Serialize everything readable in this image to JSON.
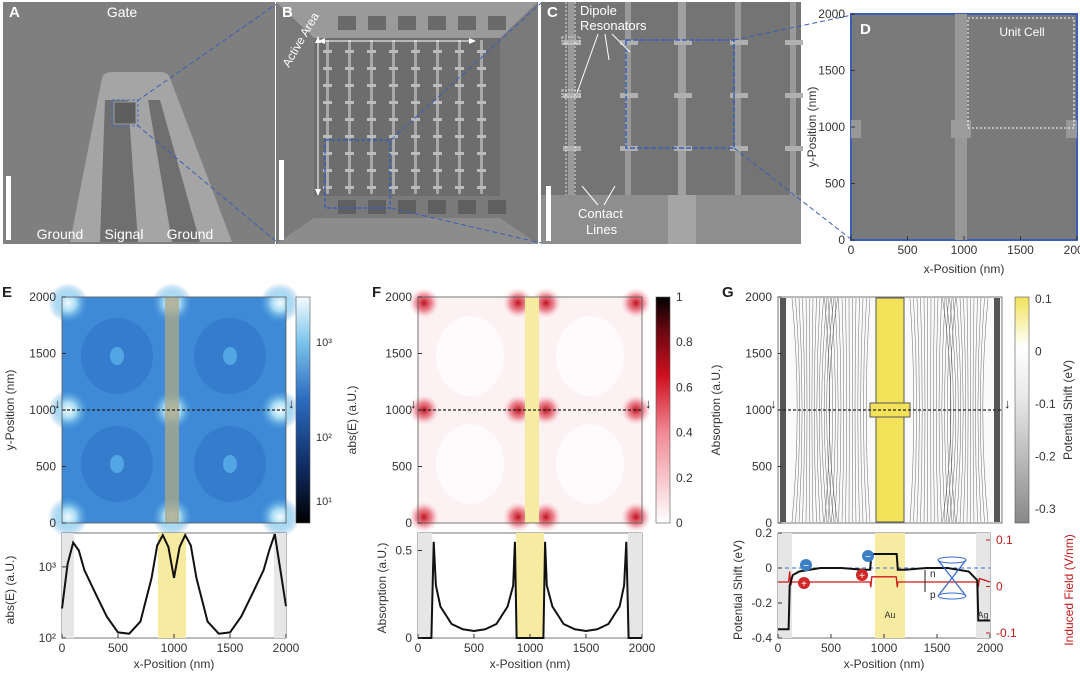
{
  "panels": {
    "A": {
      "letter": "A",
      "gate": "Gate",
      "ground_left": "Ground",
      "signal": "Signal",
      "ground_right": "Ground"
    },
    "B": {
      "letter": "B",
      "active_area": "Active Area"
    },
    "C": {
      "letter": "C",
      "dipole": "Dipole",
      "resonators": "Resonators",
      "contact": "Contact",
      "lines": "Lines"
    },
    "D": {
      "letter": "D",
      "unit_cell": "Unit Cell",
      "xlabel": "x-Position (nm)",
      "ylabel": "y-Position (nm)",
      "xticks": [
        "0",
        "500",
        "1000",
        "1500",
        "2000"
      ],
      "yticks": [
        "0",
        "500",
        "1000",
        "1500",
        "2000"
      ]
    },
    "E": {
      "letter": "E",
      "ylabel": "y-Position (nm)",
      "cbar_label": "abs(E) (a.U.)",
      "cbar_ticks": [
        "10³",
        "10²",
        "10¹"
      ],
      "bottom_ylabel": "abs(E) (a.U.)",
      "bottom_yticks": [
        "10³",
        "10²"
      ],
      "xlabel": "x-Position (nm)",
      "xticks": [
        "0",
        "500",
        "1000",
        "1500",
        "2000"
      ],
      "yticks": [
        "0",
        "500",
        "1000",
        "1500",
        "2000"
      ]
    },
    "F": {
      "letter": "F",
      "cbar_label": "Absorption (a.U.)",
      "cbar_ticks": [
        "1",
        "0.8",
        "0.6",
        "0.4",
        "0.2",
        "0"
      ],
      "bottom_ylabel": "Absorption (a.U.)",
      "bottom_yticks": [
        "0.5",
        "0"
      ],
      "xlabel": "x-Position (nm)",
      "xticks": [
        "0",
        "500",
        "1000",
        "1500",
        "2000"
      ],
      "yticks": [
        "0",
        "500",
        "1000",
        "1500",
        "2000"
      ]
    },
    "G": {
      "letter": "G",
      "cbar_label": "Potential Shift (eV)",
      "cbar_ticks": [
        "0.1",
        "0",
        "-0.1",
        "-0.2",
        "-0.3"
      ],
      "bottom_ylabel": "Potential Shift (eV)",
      "bottom_yticks": [
        "0.2",
        "0",
        "-0.2",
        "-0.4"
      ],
      "right_ylabel": "Induced Field (V/nm)",
      "right_yticks": [
        "0.1",
        "0",
        "-0.1"
      ],
      "xlabel": "x-Position (nm)",
      "xticks": [
        "0",
        "500",
        "1000",
        "1500",
        "2000"
      ],
      "yticks": [
        "0",
        "500",
        "1000",
        "1500",
        "2000"
      ],
      "au": "Au",
      "ag": "Ag",
      "n": "n",
      "p": "p"
    }
  },
  "colors": {
    "gold": "#f6eba0",
    "field_blue": "#3a86c8",
    "abs_red": "#d01020",
    "induced_red": "#d01818"
  },
  "chart_data": [
    {
      "type": "line",
      "panel": "E",
      "xlabel": "x-Position (nm)",
      "ylabel": "abs(E) (a.U.)",
      "log_y": true,
      "ylim": [
        100,
        3000
      ],
      "xlim": [
        0,
        2000
      ],
      "x": [
        0,
        50,
        100,
        150,
        200,
        300,
        400,
        500,
        600,
        700,
        800,
        850,
        900,
        950,
        1000,
        1050,
        1100,
        1150,
        1200,
        1300,
        1400,
        1500,
        1600,
        1700,
        1800,
        1850,
        1900,
        1950,
        2000
      ],
      "y": [
        260,
        1100,
        2200,
        1700,
        900,
        420,
        200,
        120,
        115,
        170,
        700,
        2000,
        2800,
        1900,
        700,
        1900,
        2800,
        2000,
        700,
        170,
        115,
        120,
        200,
        420,
        900,
        1700,
        2900,
        900,
        280
      ]
    },
    {
      "type": "line",
      "panel": "F",
      "xlabel": "x-Position (nm)",
      "ylabel": "Absorption (a.U.)",
      "ylim": [
        0,
        0.6
      ],
      "xlim": [
        0,
        2000
      ],
      "x": [
        0,
        120,
        140,
        160,
        200,
        300,
        400,
        500,
        600,
        700,
        800,
        850,
        865,
        880,
        1120,
        1135,
        1150,
        1200,
        1300,
        1400,
        1500,
        1600,
        1700,
        1800,
        1840,
        1860,
        1880,
        2000
      ],
      "y": [
        0,
        0,
        0.55,
        0.3,
        0.18,
        0.08,
        0.05,
        0.04,
        0.05,
        0.08,
        0.18,
        0.3,
        0.55,
        0,
        0,
        0.55,
        0.3,
        0.18,
        0.08,
        0.05,
        0.04,
        0.05,
        0.08,
        0.18,
        0.3,
        0.55,
        0,
        0
      ]
    },
    {
      "type": "line",
      "panel": "G",
      "xlabel": "x-Position (nm)",
      "ylabel": "Potential Shift (eV)",
      "ylim": [
        -0.4,
        0.2
      ],
      "xlim": [
        0,
        2000
      ],
      "series": [
        {
          "x": [
            0,
            100,
            110,
            140,
            200,
            400,
            600,
            800,
            870,
            880,
            1120,
            1130,
            1200,
            1400,
            1600,
            1800,
            1880,
            1890,
            2000
          ],
          "y": [
            -0.35,
            -0.35,
            -0.1,
            -0.04,
            -0.02,
            0,
            0,
            -0.01,
            -0.01,
            0.08,
            0.08,
            -0.01,
            -0.01,
            0,
            0,
            -0.02,
            -0.07,
            -0.3,
            -0.3
          ]
        },
        {
          "x": [
            0,
            100,
            110,
            120,
            130,
            200,
            400,
            600,
            800,
            870,
            875,
            885,
            1115,
            1125,
            1130,
            1200,
            1400,
            1600,
            1800,
            1880,
            1890,
            1900,
            2000
          ],
          "y": [
            0,
            0,
            0.06,
            -0.02,
            0,
            0,
            0,
            0,
            0,
            0,
            -0.03,
            0.03,
            0.03,
            -0.03,
            0,
            0,
            0,
            0,
            0,
            0,
            -0.03,
            0.02,
            0
          ]
        }
      ]
    }
  ]
}
